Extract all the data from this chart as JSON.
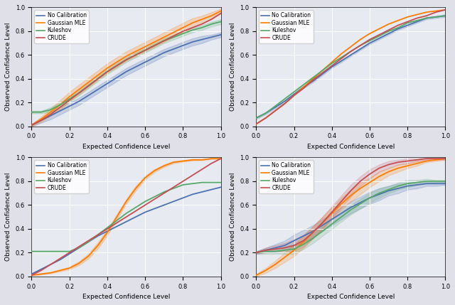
{
  "colors": {
    "no_cal": "#4c72b0",
    "gaussian": "#ff7c00",
    "kuleshov": "#55a868",
    "crude": "#c44e52"
  },
  "bg_color": "#e8eaf2",
  "xlabel": "Expected Confidence Level",
  "ylabel": "Observed Confidence Level",
  "legend_labels": [
    "No Calibration",
    "Gaussian MLE",
    "Kuleshov",
    "CRUDE"
  ],
  "panel1": {
    "no_cal": [
      0.01,
      0.05,
      0.09,
      0.13,
      0.17,
      0.21,
      0.26,
      0.31,
      0.36,
      0.41,
      0.46,
      0.5,
      0.54,
      0.58,
      0.62,
      0.65,
      0.68,
      0.71,
      0.73,
      0.75,
      0.77
    ],
    "gaussian": [
      0.01,
      0.06,
      0.12,
      0.18,
      0.25,
      0.31,
      0.37,
      0.43,
      0.49,
      0.54,
      0.59,
      0.63,
      0.67,
      0.71,
      0.75,
      0.79,
      0.83,
      0.87,
      0.9,
      0.93,
      0.97
    ],
    "kuleshov": [
      0.12,
      0.12,
      0.14,
      0.18,
      0.23,
      0.28,
      0.34,
      0.4,
      0.46,
      0.51,
      0.56,
      0.6,
      0.64,
      0.68,
      0.72,
      0.75,
      0.78,
      0.81,
      0.83,
      0.86,
      0.88
    ],
    "crude": [
      0.01,
      0.05,
      0.1,
      0.16,
      0.22,
      0.28,
      0.34,
      0.4,
      0.46,
      0.51,
      0.56,
      0.6,
      0.64,
      0.68,
      0.72,
      0.76,
      0.8,
      0.83,
      0.86,
      0.9,
      0.95
    ],
    "x": [
      0.0,
      0.05,
      0.1,
      0.15,
      0.2,
      0.25,
      0.3,
      0.35,
      0.4,
      0.45,
      0.5,
      0.55,
      0.6,
      0.65,
      0.7,
      0.75,
      0.8,
      0.85,
      0.9,
      0.95,
      1.0
    ],
    "no_cal_std": [
      0.01,
      0.02,
      0.03,
      0.03,
      0.03,
      0.03,
      0.03,
      0.03,
      0.03,
      0.03,
      0.03,
      0.03,
      0.03,
      0.03,
      0.03,
      0.03,
      0.03,
      0.03,
      0.03,
      0.02,
      0.02
    ],
    "gaussian_std": [
      0.01,
      0.02,
      0.03,
      0.04,
      0.04,
      0.04,
      0.04,
      0.04,
      0.04,
      0.04,
      0.04,
      0.04,
      0.04,
      0.04,
      0.04,
      0.04,
      0.04,
      0.04,
      0.03,
      0.03,
      0.02
    ],
    "kuleshov_std": [
      0.01,
      0.01,
      0.02,
      0.02,
      0.02,
      0.02,
      0.02,
      0.02,
      0.02,
      0.02,
      0.02,
      0.02,
      0.02,
      0.02,
      0.02,
      0.02,
      0.02,
      0.02,
      0.02,
      0.02,
      0.02
    ]
  },
  "panel2": {
    "no_cal": [
      0.07,
      0.11,
      0.16,
      0.21,
      0.27,
      0.33,
      0.38,
      0.44,
      0.5,
      0.55,
      0.6,
      0.65,
      0.7,
      0.74,
      0.78,
      0.82,
      0.85,
      0.88,
      0.91,
      0.92,
      0.93
    ],
    "gaussian": [
      0.02,
      0.07,
      0.13,
      0.19,
      0.26,
      0.33,
      0.4,
      0.47,
      0.54,
      0.61,
      0.67,
      0.73,
      0.78,
      0.82,
      0.86,
      0.89,
      0.92,
      0.94,
      0.96,
      0.97,
      0.98
    ],
    "kuleshov": [
      0.07,
      0.11,
      0.17,
      0.23,
      0.29,
      0.35,
      0.41,
      0.47,
      0.53,
      0.58,
      0.63,
      0.68,
      0.72,
      0.76,
      0.8,
      0.83,
      0.87,
      0.89,
      0.91,
      0.92,
      0.93
    ],
    "crude": [
      0.02,
      0.07,
      0.13,
      0.19,
      0.26,
      0.32,
      0.39,
      0.45,
      0.51,
      0.57,
      0.63,
      0.68,
      0.73,
      0.77,
      0.81,
      0.85,
      0.88,
      0.91,
      0.93,
      0.96,
      0.98
    ],
    "x": [
      0.0,
      0.05,
      0.1,
      0.15,
      0.2,
      0.25,
      0.3,
      0.35,
      0.4,
      0.45,
      0.5,
      0.55,
      0.6,
      0.65,
      0.7,
      0.75,
      0.8,
      0.85,
      0.9,
      0.95,
      1.0
    ],
    "no_cal_std": [
      0.01,
      0.01,
      0.01,
      0.01,
      0.01,
      0.01,
      0.01,
      0.01,
      0.01,
      0.01,
      0.01,
      0.01,
      0.01,
      0.01,
      0.01,
      0.01,
      0.01,
      0.01,
      0.01,
      0.01,
      0.01
    ]
  },
  "panel3": {
    "no_cal": [
      0.02,
      0.06,
      0.1,
      0.14,
      0.19,
      0.24,
      0.29,
      0.34,
      0.38,
      0.42,
      0.46,
      0.5,
      0.54,
      0.57,
      0.6,
      0.63,
      0.66,
      0.69,
      0.71,
      0.73,
      0.75
    ],
    "gaussian": [
      0.01,
      0.02,
      0.03,
      0.05,
      0.07,
      0.11,
      0.17,
      0.26,
      0.37,
      0.5,
      0.63,
      0.74,
      0.83,
      0.89,
      0.93,
      0.96,
      0.97,
      0.98,
      0.98,
      0.99,
      0.99
    ],
    "kuleshov": [
      0.21,
      0.21,
      0.21,
      0.21,
      0.21,
      0.24,
      0.29,
      0.35,
      0.41,
      0.47,
      0.53,
      0.58,
      0.63,
      0.67,
      0.71,
      0.74,
      0.77,
      0.78,
      0.79,
      0.79,
      0.79
    ],
    "crude": [
      0.01,
      0.05,
      0.1,
      0.15,
      0.2,
      0.25,
      0.3,
      0.35,
      0.4,
      0.45,
      0.5,
      0.55,
      0.6,
      0.65,
      0.7,
      0.75,
      0.8,
      0.85,
      0.9,
      0.95,
      0.99
    ],
    "x": [
      0.0,
      0.05,
      0.1,
      0.15,
      0.2,
      0.25,
      0.3,
      0.35,
      0.4,
      0.45,
      0.5,
      0.55,
      0.6,
      0.65,
      0.7,
      0.75,
      0.8,
      0.85,
      0.9,
      0.95,
      1.0
    ],
    "gaussian_std": [
      0.003,
      0.004,
      0.005,
      0.007,
      0.01,
      0.015,
      0.02,
      0.025,
      0.025,
      0.02,
      0.02,
      0.02,
      0.015,
      0.012,
      0.01,
      0.008,
      0.006,
      0.005,
      0.004,
      0.003,
      0.002
    ]
  },
  "panel4": {
    "no_cal": [
      0.2,
      0.22,
      0.24,
      0.26,
      0.3,
      0.34,
      0.38,
      0.43,
      0.48,
      0.53,
      0.58,
      0.62,
      0.66,
      0.69,
      0.72,
      0.74,
      0.76,
      0.77,
      0.78,
      0.78,
      0.78
    ],
    "gaussian": [
      0.01,
      0.05,
      0.1,
      0.16,
      0.22,
      0.29,
      0.37,
      0.45,
      0.53,
      0.61,
      0.68,
      0.74,
      0.79,
      0.84,
      0.88,
      0.91,
      0.93,
      0.95,
      0.97,
      0.98,
      0.99
    ],
    "kuleshov": [
      0.2,
      0.21,
      0.21,
      0.22,
      0.23,
      0.27,
      0.32,
      0.38,
      0.44,
      0.5,
      0.56,
      0.61,
      0.66,
      0.7,
      0.73,
      0.76,
      0.78,
      0.79,
      0.8,
      0.8,
      0.8
    ],
    "crude": [
      0.2,
      0.22,
      0.23,
      0.24,
      0.26,
      0.3,
      0.37,
      0.45,
      0.54,
      0.63,
      0.72,
      0.8,
      0.86,
      0.91,
      0.94,
      0.96,
      0.97,
      0.98,
      0.99,
      0.99,
      0.99
    ],
    "x": [
      0.0,
      0.05,
      0.1,
      0.15,
      0.2,
      0.25,
      0.3,
      0.35,
      0.4,
      0.45,
      0.5,
      0.55,
      0.6,
      0.65,
      0.7,
      0.75,
      0.8,
      0.85,
      0.9,
      0.95,
      1.0
    ],
    "no_cal_std": [
      0.01,
      0.02,
      0.03,
      0.04,
      0.05,
      0.05,
      0.05,
      0.05,
      0.05,
      0.05,
      0.05,
      0.05,
      0.05,
      0.05,
      0.04,
      0.04,
      0.03,
      0.03,
      0.02,
      0.02,
      0.01
    ],
    "gaussian_std": [
      0.01,
      0.02,
      0.03,
      0.04,
      0.05,
      0.05,
      0.05,
      0.05,
      0.05,
      0.05,
      0.05,
      0.05,
      0.04,
      0.04,
      0.03,
      0.03,
      0.02,
      0.02,
      0.01,
      0.01,
      0.01
    ],
    "kuleshov_std": [
      0.01,
      0.02,
      0.02,
      0.03,
      0.04,
      0.04,
      0.04,
      0.04,
      0.04,
      0.04,
      0.04,
      0.04,
      0.04,
      0.04,
      0.03,
      0.03,
      0.03,
      0.02,
      0.02,
      0.01,
      0.01
    ],
    "crude_std": [
      0.01,
      0.02,
      0.03,
      0.04,
      0.05,
      0.05,
      0.05,
      0.05,
      0.05,
      0.05,
      0.05,
      0.04,
      0.04,
      0.03,
      0.03,
      0.02,
      0.02,
      0.01,
      0.01,
      0.01,
      0.01
    ]
  }
}
